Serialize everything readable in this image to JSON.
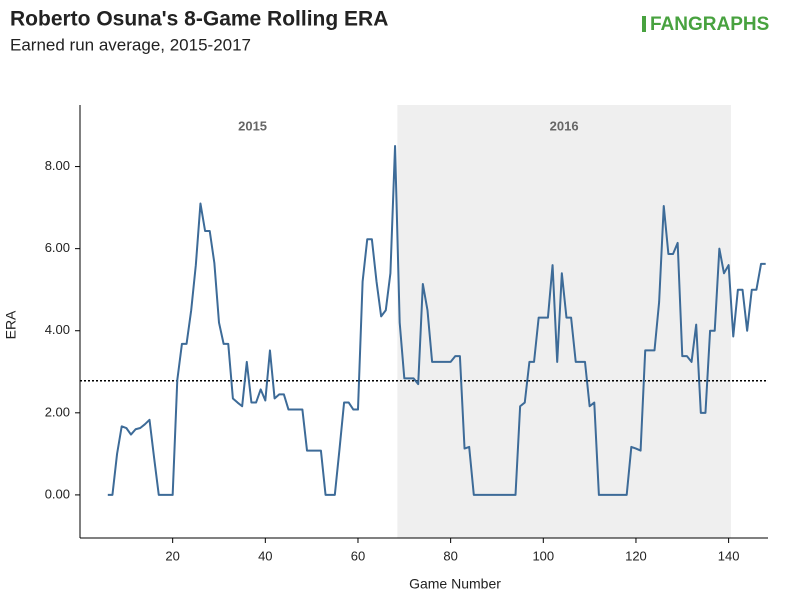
{
  "chart_data": {
    "type": "line",
    "title": "Roberto Osuna's 8-Game Rolling ERA",
    "subtitle": "Earned run average, 2015-2017",
    "logo": "FANGRAPHS",
    "x_label": "Game Number",
    "y_label": "ERA",
    "color": "#3d6b98",
    "x": [
      6,
      7,
      8,
      9,
      10,
      11,
      12,
      13,
      14,
      15,
      16,
      17,
      18,
      19,
      20,
      21,
      22,
      23,
      24,
      25,
      26,
      27,
      28,
      29,
      30,
      31,
      32,
      33,
      34,
      35,
      36,
      37,
      38,
      39,
      40,
      41,
      42,
      43,
      44,
      45,
      46,
      47,
      48,
      49,
      50,
      51,
      52,
      53,
      54,
      55,
      56,
      57,
      58,
      59,
      60,
      61,
      62,
      63,
      64,
      65,
      66,
      67,
      68,
      69,
      70,
      71,
      72,
      73,
      74,
      75,
      76,
      77,
      78,
      79,
      80,
      81,
      82,
      83,
      84,
      85,
      86,
      87,
      88,
      89,
      90,
      91,
      92,
      93,
      94,
      95,
      96,
      97,
      98,
      99,
      100,
      101,
      102,
      103,
      104,
      105,
      106,
      107,
      108,
      109,
      110,
      111,
      112,
      113,
      114,
      115,
      116,
      117,
      118,
      119,
      120,
      121,
      122,
      123,
      124,
      125,
      126,
      127,
      128,
      129,
      130,
      131,
      132,
      133,
      134,
      135,
      136,
      137,
      138,
      139,
      140,
      141,
      142,
      143,
      144,
      145,
      146,
      147,
      148
    ],
    "values": [
      0,
      0,
      1.0,
      1.67,
      1.63,
      1.47,
      1.6,
      1.63,
      1.72,
      1.83,
      0.9,
      0,
      0,
      0,
      0,
      2.8,
      3.68,
      3.68,
      4.5,
      5.6,
      7.1,
      6.43,
      6.43,
      5.65,
      4.2,
      3.68,
      3.68,
      2.35,
      2.25,
      2.16,
      3.24,
      2.25,
      2.25,
      2.57,
      2.3,
      3.52,
      2.35,
      2.45,
      2.45,
      2.08,
      2.08,
      2.08,
      2.08,
      1.08,
      1.08,
      1.08,
      1.08,
      0,
      0,
      0,
      1.1,
      2.25,
      2.25,
      2.08,
      2.08,
      5.2,
      6.23,
      6.23,
      5.2,
      4.35,
      4.5,
      5.4,
      8.5,
      4.2,
      2.84,
      2.84,
      2.84,
      2.7,
      5.14,
      4.5,
      3.24,
      3.24,
      3.24,
      3.24,
      3.24,
      3.38,
      3.38,
      1.13,
      1.17,
      0,
      0,
      0,
      0,
      0,
      0,
      0,
      0,
      0,
      0,
      2.16,
      2.25,
      3.24,
      3.24,
      4.32,
      4.32,
      4.32,
      5.6,
      3.24,
      5.4,
      4.32,
      4.32,
      3.24,
      3.24,
      3.24,
      2.16,
      2.25,
      0,
      0,
      0,
      0,
      0,
      0,
      0,
      1.17,
      1.13,
      1.08,
      3.52,
      3.52,
      3.52,
      4.7,
      7.04,
      5.87,
      5.87,
      6.14,
      3.38,
      3.38,
      3.24,
      4.15,
      2.0,
      2.0,
      4.0,
      4.0,
      6.0,
      5.4,
      5.6,
      3.86,
      5.0,
      5.0,
      4.0,
      5.0,
      5.0,
      5.63,
      5.63
    ],
    "reference_line": 2.78,
    "regions": [
      {
        "label": "2015",
        "range": [
          6,
          68.5
        ],
        "shaded": false
      },
      {
        "label": "2016",
        "range": [
          68.5,
          140.5
        ],
        "shaded": true
      }
    ],
    "xlim": [
      0,
      148.5
    ],
    "xticks": [
      20,
      40,
      60,
      80,
      100,
      120,
      140
    ],
    "ylim": [
      -1.05,
      9.5
    ],
    "yticks": [
      {
        "value": 0,
        "label": "0.00"
      },
      {
        "value": 2,
        "label": "2.00"
      },
      {
        "value": 4,
        "label": "4.00"
      },
      {
        "value": 6,
        "label": "6.00"
      },
      {
        "value": 8,
        "label": "8.00"
      }
    ]
  }
}
